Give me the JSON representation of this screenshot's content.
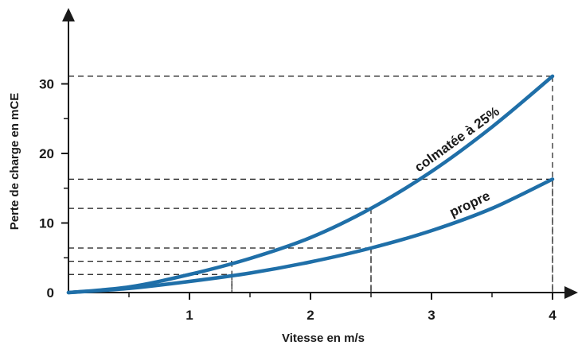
{
  "chart_data": {
    "type": "line",
    "xlabel": "Vitesse en m/s",
    "ylabel": "Perte de charge en mCE",
    "xlim": [
      0,
      4
    ],
    "ylim": [
      0,
      33
    ],
    "x_ticks": [
      "1",
      "2",
      "3",
      "4"
    ],
    "y_ticks": [
      "0",
      "10",
      "20",
      "30"
    ],
    "x_minor_ticks": [
      0.5,
      1.5,
      2.5,
      3.5
    ],
    "y_minor_ticks": [
      5,
      15,
      25
    ],
    "grid": false,
    "series": [
      {
        "name": "colmatée à 25%",
        "color": "#1f6fa8",
        "x": [
          0,
          0.5,
          1,
          1.5,
          2,
          2.5,
          3,
          3.5,
          4
        ],
        "y": [
          0,
          0.8,
          2.6,
          4.9,
          7.9,
          12.1,
          17.4,
          23.8,
          31.1
        ]
      },
      {
        "name": "propre",
        "color": "#1f6fa8",
        "x": [
          0,
          0.5,
          1,
          1.5,
          2,
          2.5,
          3,
          3.5,
          4
        ],
        "y": [
          0,
          0.6,
          1.6,
          2.8,
          4.4,
          6.4,
          8.9,
          12.1,
          16.3
        ]
      }
    ],
    "reference_lines": [
      {
        "x": 2.5,
        "y": 12.1
      },
      {
        "x": 2.5,
        "y": 6.4
      },
      {
        "x": 4,
        "y": 31.1
      },
      {
        "x": 4,
        "y": 16.3
      },
      {
        "x": 1.35,
        "y": 4.5
      },
      {
        "x": 1.35,
        "y": 2.6
      }
    ]
  }
}
